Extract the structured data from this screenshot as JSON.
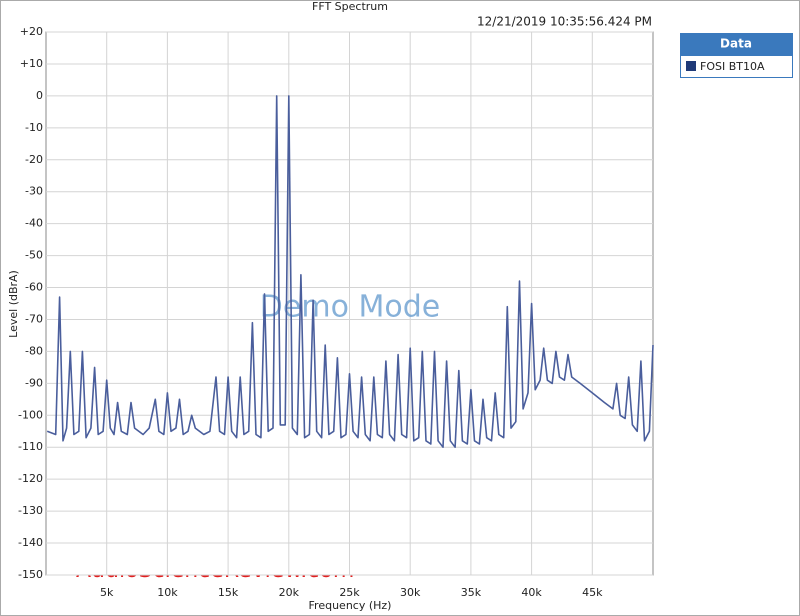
{
  "chart_data": {
    "type": "line",
    "title": "FFT Spectrum",
    "timestamp": "12/21/2019 10:35:56.424 PM",
    "xlabel": "Frequency (Hz)",
    "ylabel": "Level (dBrA)",
    "watermark": "Demo Mode",
    "source": "AudioScienceReview.com",
    "legend_title": "Data",
    "grid": true,
    "xlim": [
      0,
      50000
    ],
    "ylim": [
      -150,
      20
    ],
    "xticks": [
      {
        "value": 5000,
        "label": "5k"
      },
      {
        "value": 10000,
        "label": "10k"
      },
      {
        "value": 15000,
        "label": "15k"
      },
      {
        "value": 20000,
        "label": "20k"
      },
      {
        "value": 25000,
        "label": "25k"
      },
      {
        "value": 30000,
        "label": "30k"
      },
      {
        "value": 35000,
        "label": "35k"
      },
      {
        "value": 40000,
        "label": "40k"
      },
      {
        "value": 45000,
        "label": "45k"
      }
    ],
    "yticks": [
      {
        "value": 20,
        "label": "+20"
      },
      {
        "value": 10,
        "label": "+10"
      },
      0,
      -10,
      -20,
      -30,
      -40,
      -50,
      -60,
      -70,
      -80,
      -90,
      -100,
      -110,
      -120,
      -130,
      -140,
      -150
    ],
    "x": [
      100,
      800,
      1120,
      1400,
      1700,
      2000,
      2300,
      2700,
      3000,
      3300,
      3700,
      4000,
      4300,
      4700,
      5000,
      5300,
      5600,
      5900,
      6200,
      6700,
      7000,
      7300,
      8000,
      8500,
      9000,
      9300,
      9700,
      10000,
      10300,
      10700,
      11000,
      11300,
      11700,
      12000,
      12300,
      13000,
      13500,
      14000,
      14300,
      14700,
      15000,
      15300,
      15700,
      16000,
      16300,
      16700,
      17000,
      17300,
      17700,
      18000,
      18300,
      18700,
      19000,
      19300,
      19700,
      20000,
      20300,
      20700,
      21000,
      21300,
      21700,
      22000,
      22300,
      22700,
      23000,
      23300,
      23700,
      24000,
      24300,
      24700,
      25000,
      25300,
      25700,
      26000,
      26300,
      26700,
      27000,
      27300,
      27700,
      28000,
      28300,
      28700,
      29000,
      29300,
      29700,
      30000,
      30300,
      30700,
      31000,
      31300,
      31700,
      32000,
      32300,
      32700,
      33000,
      33300,
      33700,
      34000,
      34300,
      34700,
      35000,
      35300,
      35700,
      36000,
      36300,
      36700,
      37000,
      37300,
      37700,
      38000,
      38300,
      38700,
      39000,
      39300,
      39700,
      40000,
      40300,
      40700,
      41000,
      41300,
      41700,
      42000,
      42300,
      42700,
      43000,
      43300,
      44000,
      45000,
      46000,
      46700,
      47000,
      47300,
      47700,
      48000,
      48300,
      48700,
      49000,
      49300,
      49700,
      50000
    ],
    "series": [
      {
        "name": "FOSI BT10A",
        "color": "#4a5e9c",
        "legend_color": "#1f3a78",
        "values": [
          -105,
          -106,
          -63,
          -108,
          -104,
          -80,
          -106,
          -105,
          -80,
          -107,
          -104,
          -85,
          -106,
          -105,
          -89,
          -104,
          -106,
          -96,
          -105,
          -106,
          -96,
          -104,
          -106,
          -104,
          -95,
          -105,
          -106,
          -93,
          -105,
          -104,
          -95,
          -106,
          -105,
          -100,
          -104,
          -106,
          -105,
          -88,
          -105,
          -106,
          -88,
          -105,
          -107,
          -88,
          -106,
          -105,
          -71,
          -106,
          -107,
          -62,
          -105,
          -104,
          0,
          -103,
          -103,
          0,
          -104,
          -106,
          -56,
          -107,
          -106,
          -64,
          -105,
          -107,
          -78,
          -106,
          -105,
          -82,
          -107,
          -106,
          -87,
          -105,
          -107,
          -88,
          -106,
          -108,
          -88,
          -106,
          -107,
          -83,
          -106,
          -108,
          -81,
          -106,
          -107,
          -79,
          -108,
          -107,
          -80,
          -108,
          -109,
          -80,
          -108,
          -110,
          -83,
          -108,
          -110,
          -86,
          -108,
          -109,
          -92,
          -108,
          -109,
          -95,
          -107,
          -108,
          -93,
          -106,
          -107,
          -66,
          -104,
          -102,
          -58,
          -98,
          -93,
          -65,
          -92,
          -89,
          -79,
          -89,
          -90,
          -80,
          -88,
          -89,
          -81,
          -88,
          -90,
          -93,
          -96,
          -98,
          -90,
          -100,
          -101,
          -88,
          -103,
          -105,
          -83,
          -108,
          -105,
          -78
        ]
      }
    ]
  }
}
